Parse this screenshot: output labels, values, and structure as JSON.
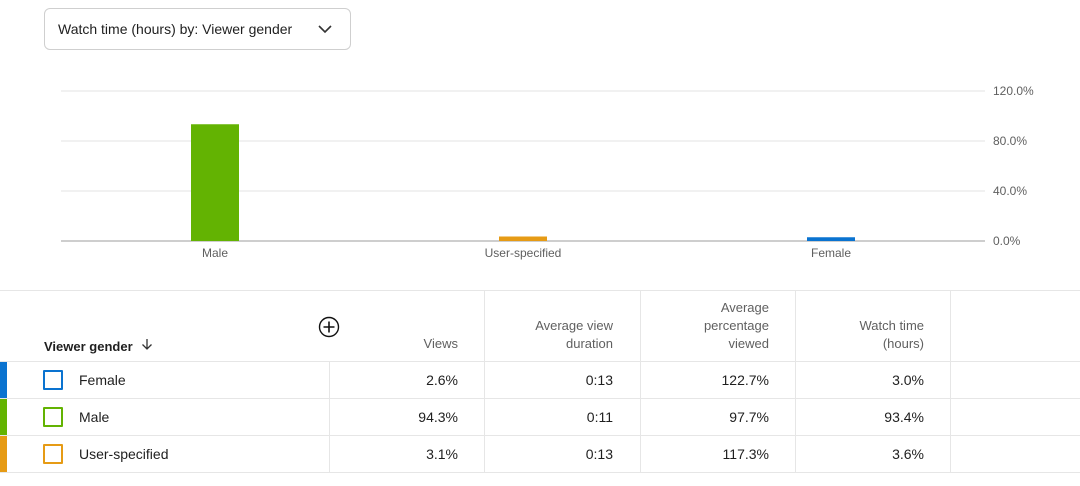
{
  "dropdown": {
    "label": "Watch time (hours) by: Viewer gender"
  },
  "chart_data": {
    "type": "bar",
    "categories": [
      "Male",
      "User-specified",
      "Female"
    ],
    "values": [
      93.4,
      3.6,
      3.0
    ],
    "colors": [
      "#63b302",
      "#e69b15",
      "#0a73d0"
    ],
    "ylim": [
      0,
      120
    ],
    "yticks": [
      "120.0%",
      "80.0%",
      "40.0%",
      "0.0%"
    ],
    "ytick_values": [
      120,
      80,
      40,
      0
    ],
    "grid": true
  },
  "table": {
    "headers": {
      "gender": "Viewer gender",
      "views": "Views",
      "avg_view_duration": [
        "Average view",
        "duration"
      ],
      "avg_pct_viewed": [
        "Average",
        "percentage",
        "viewed"
      ],
      "watch_time": [
        "Watch time",
        "(hours)"
      ]
    },
    "rows": [
      {
        "label": "Female",
        "color": "#0a73d0",
        "views": "2.6%",
        "duration": "0:13",
        "pct": "122.7%",
        "watch": "3.0%"
      },
      {
        "label": "Male",
        "color": "#63b302",
        "views": "94.3%",
        "duration": "0:11",
        "pct": "97.7%",
        "watch": "93.4%"
      },
      {
        "label": "User-specified",
        "color": "#e69b15",
        "views": "3.1%",
        "duration": "0:13",
        "pct": "117.3%",
        "watch": "3.6%"
      }
    ]
  },
  "icons": {
    "dropdown": "chevron-down-icon",
    "add": "add-circle-icon",
    "sort": "arrow-down-icon"
  }
}
